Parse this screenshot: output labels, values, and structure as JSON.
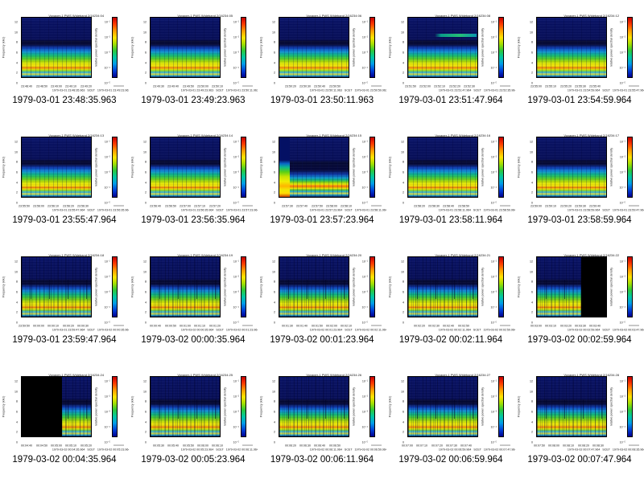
{
  "colors": {
    "background": "#ffffff",
    "label_text": "#000000",
    "data_gap": "#000000"
  },
  "chart_data": {
    "type": "heatmap",
    "layout": "4x5 montage of spectrogram thumbnails, each panel is a 48-second frequency-time spectrogram",
    "axes": {
      "ylabel": "Frequency (kHz)",
      "ylim": [
        0,
        12
      ],
      "yticks": [
        "12",
        "10",
        "8",
        "6",
        "4",
        "2",
        "0"
      ],
      "xlabel": "SCET",
      "colorbar_label": "relative power spectral density",
      "colorbar_ticks": [
        "10⁻¹",
        "10⁻²",
        "10⁻³",
        "10⁻⁴",
        "10⁻⁵"
      ],
      "colorbar_range": [
        "1e-1",
        "1e-5"
      ],
      "colorbar_colors": [
        "#c80000",
        "#ff3c00",
        "#ff9c00",
        "#ffe400",
        "#a4e000",
        "#2cc83c",
        "#00c8a4",
        "#009ce8",
        "#0040d8",
        "#000090"
      ]
    },
    "panels": [
      {
        "title": "Voyager-1 PWS Wideband 2/16234:04",
        "label": "1979-03-01 23:48:35.963",
        "scet": "1979-03-01 23:48:35.963   SCET   1979-03-01 23:49:23.963",
        "xticks": [
          "23:48:40",
          "23:48:50",
          "23:49:00",
          "23:49:10",
          "23:49:20"
        ]
      },
      {
        "title": "Voyager-1 PWS Wideband 2/16234:05",
        "label": "1979-03-01 23:49:23.963",
        "scet": "1979-03-01 23:49:23.963   SCET   1979-03-01 23:50:11.963",
        "xticks": [
          "23:49:30",
          "23:49:40",
          "23:49:50",
          "23:50:00",
          "23:50:10"
        ]
      },
      {
        "title": "Voyager-1 PWS Wideband 2/16234:06",
        "label": "1979-03-01 23:50:11.963",
        "scet": "1979-03-01 23:50:11.963   SCET   1979-03-01 23:50:59.963",
        "xticks": [
          "23:50:20",
          "23:50:30",
          "23:50:40",
          "23:50:50"
        ]
      },
      {
        "title": "Voyager-1 PWS Wideband 2/16234:08",
        "label": "1979-03-01 23:51:47.964",
        "scet": "1979-03-01 23:51:47.964   SCET   1979-03-01 23:52:35.964",
        "xticks": [
          "23:51:50",
          "23:52:00",
          "23:52:10",
          "23:52:20",
          "23:52:30"
        ],
        "variant": "greenband"
      },
      {
        "title": "Voyager-1 PWS Wideband 2/16234:12",
        "label": "1979-03-01 23:54:59.964",
        "scet": "1979-03-01 23:54:59.964   SCET   1979-03-01 23:55:47.964",
        "xticks": [
          "23:55:00",
          "23:55:10",
          "23:55:20",
          "23:55:30",
          "23:55:40"
        ]
      },
      {
        "title": "Voyager-1 PWS Wideband 2/16234:13",
        "label": "1979-03-01 23:55:47.964",
        "scet": "1979-03-01 23:55:47.964   SCET   1979-03-01 23:56:35.964",
        "xticks": [
          "23:55:50",
          "23:56:00",
          "23:56:10",
          "23:56:20",
          "23:56:30"
        ]
      },
      {
        "title": "Voyager-1 PWS Wideband 2/16234:14",
        "label": "1979-03-01 23:56:35.964",
        "scet": "1979-03-01 23:56:35.964   SCET   1979-03-01 23:57:23.964",
        "xticks": [
          "23:56:40",
          "23:56:50",
          "23:57:00",
          "23:57:10",
          "23:57:20"
        ]
      },
      {
        "title": "Voyager-1 PWS Wideband 2/16234:15",
        "label": "1979-03-01 23:57:23.964",
        "scet": "1979-03-01 23:57:23.964   SCET   1979-03-01 23:58:11.964",
        "xticks": [
          "23:57:30",
          "23:57:40",
          "23:57:50",
          "23:58:00",
          "23:58:10"
        ],
        "variant": "burst"
      },
      {
        "title": "Voyager-1 PWS Wideband 2/16234:16",
        "label": "1979-03-01 23:58:11.964",
        "scet": "1979-03-01 23:58:11.964   SCET   1979-03-01 23:58:59.964",
        "xticks": [
          "23:58:20",
          "23:58:30",
          "23:58:40",
          "23:58:50"
        ]
      },
      {
        "title": "Voyager-1 PWS Wideband 2/16234:17",
        "label": "1979-03-01 23:58:59.964",
        "scet": "1979-03-01 23:58:59.964   SCET   1979-03-01 23:59:47.964",
        "xticks": [
          "23:59:00",
          "23:59:10",
          "23:59:20",
          "23:59:30",
          "23:59:40"
        ]
      },
      {
        "title": "Voyager-1 PWS Wideband 2/16234:18",
        "label": "1979-03-01 23:59:47.964",
        "scet": "1979-03-01 23:59:47.964   SCET   1979-03-02 00:00:35.964",
        "xticks": [
          "23:59:50",
          "00:00:00",
          "00:00:10",
          "00:00:20",
          "00:00:30"
        ],
        "variant": "streaks"
      },
      {
        "title": "Voyager-1 PWS Wideband 2/16234:19",
        "label": "1979-03-02 00:00:35.964",
        "scet": "1979-03-02 00:00:35.964   SCET   1979-03-02 00:01:23.964",
        "xticks": [
          "00:00:40",
          "00:00:50",
          "00:01:00",
          "00:01:10",
          "00:01:20"
        ],
        "variant": "streaks"
      },
      {
        "title": "Voyager-1 PWS Wideband 2/16234:20",
        "label": "1979-03-02 00:01:23.964",
        "scet": "1979-03-02 00:01:23.964   SCET   1979-03-02 00:02:11.964",
        "xticks": [
          "00:01:30",
          "00:01:40",
          "00:01:50",
          "00:02:00",
          "00:02:10"
        ],
        "variant": "streaks"
      },
      {
        "title": "Voyager-1 PWS Wideband 2/16234:21",
        "label": "1979-03-02 00:02:11.964",
        "scet": "1979-03-02 00:02:11.964   SCET   1979-03-02 00:02:59.964",
        "xticks": [
          "00:02:20",
          "00:02:30",
          "00:02:40",
          "00:02:50"
        ],
        "variant": "streaks"
      },
      {
        "title": "Voyager-1 PWS Wideband 2/16234:22",
        "label": "1979-03-02 00:02:59.964",
        "scet": "1979-03-02 00:02:59.964   SCET   1979-03-02 00:03:47.964",
        "xticks": [
          "00:03:00",
          "00:03:10",
          "00:03:20",
          "00:03:30",
          "00:03:40"
        ],
        "variant": "streaks",
        "gap": {
          "side": "right",
          "percent": 36
        }
      },
      {
        "title": "Voyager-1 PWS Wideband 2/16234:24",
        "label": "1979-03-02 00:04:35.964",
        "scet": "1979-03-02 00:04:35.964   SCET   1979-03-02 00:05:23.964",
        "xticks": [
          "00:04:40",
          "00:04:50",
          "00:05:00",
          "00:05:10",
          "00:05:20"
        ],
        "variant": "streaks",
        "gap": {
          "side": "left",
          "percent": 58
        }
      },
      {
        "title": "Voyager-1 PWS Wideband 2/16234:25",
        "label": "1979-03-02 00:05:23.964",
        "scet": "1979-03-02 00:05:23.964   SCET   1979-03-02 00:06:11.964",
        "xticks": [
          "00:05:30",
          "00:05:40",
          "00:05:50",
          "00:06:00",
          "00:06:10"
        ],
        "variant": "streaks"
      },
      {
        "title": "Voyager-1 PWS Wideband 2/16234:26",
        "label": "1979-03-02 00:06:11.964",
        "scet": "1979-03-02 00:06:11.964   SCET   1979-03-02 00:06:59.964",
        "xticks": [
          "00:06:20",
          "00:06:30",
          "00:06:40",
          "00:06:50"
        ],
        "variant": "streaks"
      },
      {
        "title": "Voyager-1 PWS Wideband 2/16234:27",
        "label": "1979-03-02 00:06:59.964",
        "scet": "1979-03-02 00:06:59.964   SCET   1979-03-02 00:07:47.964",
        "xticks": [
          "00:07:00",
          "00:07:10",
          "00:07:20",
          "00:07:30",
          "00:07:40"
        ],
        "variant": "streaks"
      },
      {
        "title": "Voyager-1 PWS Wideband 2/16234:28",
        "label": "1979-03-02 00:07:47.964",
        "scet": "1979-03-02 00:07:47.964   SCET   1979-03-02 00:08:35.964",
        "xticks": [
          "00:07:50",
          "00:08:00",
          "00:08:10",
          "00:08:20",
          "00:08:30"
        ],
        "variant": "streaks"
      }
    ]
  }
}
